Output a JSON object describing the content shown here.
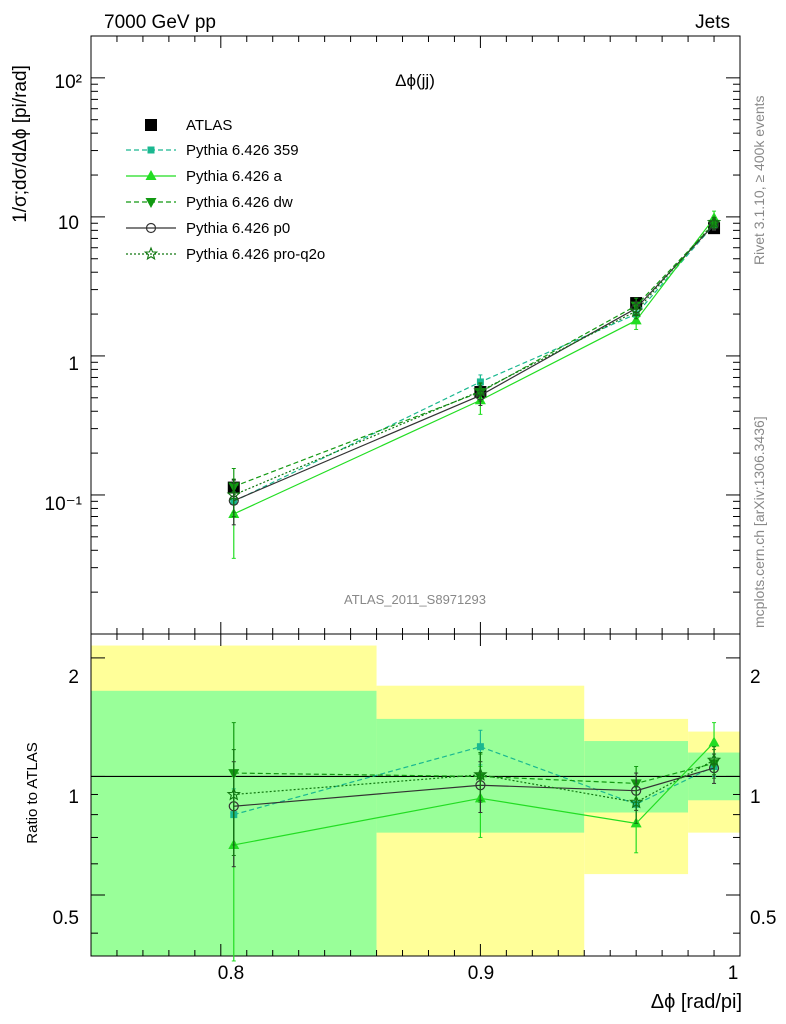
{
  "header": {
    "left": "7000 GeV pp",
    "right": "Jets"
  },
  "side_text": {
    "rivet": "Rivet 3.1.10, ≥ 400k events",
    "mcplots": "mcplots.cern.ch [arXiv:1306.3436]"
  },
  "colors": {
    "atlas": "#000000",
    "p359": "#1ab890",
    "a": "#22dd22",
    "dw": "#119911",
    "p0": "#333333",
    "pro": "#117711",
    "band_inner": "#99ff99",
    "band_outer": "#ffff99"
  },
  "chart_data": [
    {
      "type": "scatter",
      "title": "Δϕ(jj)",
      "ylabel": "1/σ;dσ/dΔϕ [pi/rad]",
      "xlabel": "",
      "xlim": [
        0.75,
        1.0
      ],
      "ylim": [
        0.01,
        200
      ],
      "yscale": "log",
      "ytick_labels": [
        "10⁻¹",
        "1",
        "10",
        "10²"
      ],
      "watermark": "ATLAS_2011_S8971293",
      "legend_position": "top-left",
      "x": [
        0.805,
        0.9,
        0.96,
        0.99
      ],
      "series": [
        {
          "name": "ATLAS",
          "values": [
            0.113,
            0.55,
            2.4,
            8.3
          ],
          "errors": [
            0.015,
            0.06,
            0.2,
            0.5
          ]
        },
        {
          "name": "Pythia 6.426 359",
          "values": [
            0.09,
            0.65,
            2.0,
            8.8
          ],
          "errors": [
            0.015,
            0.08,
            0.2,
            0.6
          ]
        },
        {
          "name": "Pythia 6.426 a",
          "values": [
            0.073,
            0.48,
            1.8,
            9.8
          ],
          "errors": [
            0.038,
            0.1,
            0.25,
            1.2
          ]
        },
        {
          "name": "Pythia 6.426 dw",
          "values": [
            0.115,
            0.55,
            2.3,
            8.9
          ],
          "errors": [
            0.04,
            0.08,
            0.3,
            0.8
          ]
        },
        {
          "name": "Pythia 6.426 p0",
          "values": [
            0.091,
            0.52,
            2.2,
            8.8
          ],
          "errors": [
            0.03,
            0.08,
            0.25,
            0.8
          ]
        },
        {
          "name": "Pythia 6.426 pro-q2o",
          "values": [
            0.1,
            0.56,
            2.1,
            9.1
          ],
          "errors": [
            0.03,
            0.08,
            0.25,
            0.8
          ]
        }
      ]
    },
    {
      "type": "ratio",
      "ylabel": "Ratio to ATLAS",
      "xlabel": "Δϕ [rad/pi]",
      "xlim": [
        0.75,
        1.0
      ],
      "ylim": [
        0.35,
        2.3
      ],
      "yscale": "log",
      "ytick_labels": [
        "0.5",
        "1",
        "2"
      ],
      "xtick_labels": [
        "0.8",
        "0.9",
        "1"
      ],
      "reference_line": 1,
      "bands": [
        {
          "xlo": 0.75,
          "xhi": 0.86,
          "inner": [
            0.35,
            1.65
          ],
          "outer": [
            0.35,
            2.15
          ]
        },
        {
          "xlo": 0.86,
          "xhi": 0.94,
          "inner": [
            0.72,
            1.4
          ],
          "outer": [
            0.35,
            1.7
          ]
        },
        {
          "xlo": 0.94,
          "xhi": 0.98,
          "inner": [
            0.81,
            1.23
          ],
          "outer": [
            0.565,
            1.4
          ]
        },
        {
          "xlo": 0.98,
          "xhi": 1.0,
          "inner": [
            0.87,
            1.15
          ],
          "outer": [
            0.72,
            1.3
          ]
        }
      ],
      "x": [
        0.805,
        0.9,
        0.96,
        0.99
      ],
      "series": [
        {
          "name": "Pythia 6.426 359",
          "values": [
            0.8,
            1.19,
            0.85,
            1.06
          ],
          "errors": [
            0.13,
            0.12,
            0.09,
            0.06
          ]
        },
        {
          "name": "Pythia 6.426 a",
          "values": [
            0.67,
            0.88,
            0.76,
            1.22
          ],
          "errors": [
            0.33,
            0.18,
            0.12,
            0.15
          ]
        },
        {
          "name": "Pythia 6.426 dw",
          "values": [
            1.02,
            1.0,
            0.96,
            1.08
          ],
          "errors": [
            0.35,
            0.14,
            0.1,
            0.09
          ]
        },
        {
          "name": "Pythia 6.426 p0",
          "values": [
            0.84,
            0.95,
            0.92,
            1.05
          ],
          "errors": [
            0.25,
            0.14,
            0.1,
            0.09
          ]
        },
        {
          "name": "Pythia 6.426 pro-q2o",
          "values": [
            0.9,
            1.01,
            0.86,
            1.1
          ],
          "errors": [
            0.27,
            0.14,
            0.1,
            0.09
          ]
        }
      ]
    }
  ]
}
